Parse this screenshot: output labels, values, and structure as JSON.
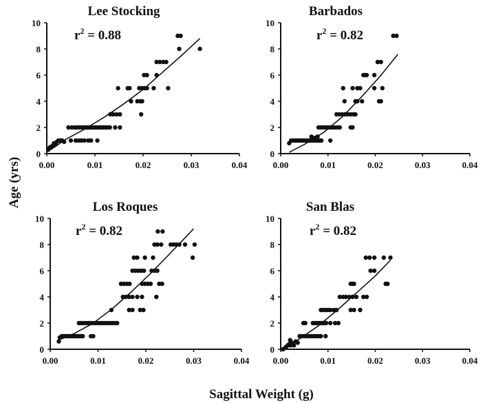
{
  "figure": {
    "xlabel": "Sagittal Weight (g)",
    "ylabel": "Age (yrs)"
  },
  "chart_data": [
    {
      "type": "scatter",
      "title": "Lee Stocking",
      "r2_label": "r",
      "r2_sup": "2",
      "r2_value": " = 0.88",
      "xlim": [
        0,
        0.04
      ],
      "ylim": [
        0,
        10
      ],
      "xticks": [
        "0.00",
        "0.01",
        "0.02",
        "0.03",
        "0.04"
      ],
      "yticks": [
        "0",
        "2",
        "4",
        "6",
        "8",
        "10"
      ],
      "points": [
        [
          0.0003,
          0.3
        ],
        [
          0.0005,
          0.4
        ],
        [
          0.0007,
          0.5
        ],
        [
          0.0009,
          0.5
        ],
        [
          0.0012,
          0.6
        ],
        [
          0.0015,
          0.8
        ],
        [
          0.0018,
          0.7
        ],
        [
          0.0021,
          0.9
        ],
        [
          0.0024,
          1
        ],
        [
          0.0028,
          1
        ],
        [
          0.0032,
          1
        ],
        [
          0.0036,
          0.9
        ],
        [
          0.0045,
          2
        ],
        [
          0.0052,
          2
        ],
        [
          0.0058,
          2
        ],
        [
          0.0063,
          2
        ],
        [
          0.0068,
          2
        ],
        [
          0.0073,
          2
        ],
        [
          0.0078,
          2
        ],
        [
          0.0082,
          2
        ],
        [
          0.0086,
          2
        ],
        [
          0.009,
          2
        ],
        [
          0.0094,
          2
        ],
        [
          0.0098,
          2
        ],
        [
          0.0102,
          2
        ],
        [
          0.0106,
          2
        ],
        [
          0.011,
          2
        ],
        [
          0.0114,
          2
        ],
        [
          0.0118,
          2
        ],
        [
          0.0122,
          2
        ],
        [
          0.0126,
          2
        ],
        [
          0.0131,
          2
        ],
        [
          0.0142,
          2
        ],
        [
          0.0152,
          2
        ],
        [
          0.005,
          1
        ],
        [
          0.006,
          1
        ],
        [
          0.0066,
          1
        ],
        [
          0.0072,
          1
        ],
        [
          0.0078,
          1
        ],
        [
          0.0086,
          1
        ],
        [
          0.0092,
          1
        ],
        [
          0.0105,
          1
        ],
        [
          0.0132,
          3
        ],
        [
          0.0138,
          3
        ],
        [
          0.0145,
          3
        ],
        [
          0.0152,
          3
        ],
        [
          0.0148,
          5
        ],
        [
          0.0168,
          5
        ],
        [
          0.0175,
          4
        ],
        [
          0.0172,
          5
        ],
        [
          0.0188,
          4
        ],
        [
          0.0194,
          4
        ],
        [
          0.0198,
          4
        ],
        [
          0.0196,
          3
        ],
        [
          0.0192,
          5
        ],
        [
          0.0198,
          5
        ],
        [
          0.0203,
          5
        ],
        [
          0.0208,
          5
        ],
        [
          0.0202,
          6
        ],
        [
          0.0208,
          6
        ],
        [
          0.0228,
          6
        ],
        [
          0.0222,
          5
        ],
        [
          0.0228,
          7
        ],
        [
          0.0235,
          7
        ],
        [
          0.0242,
          7
        ],
        [
          0.0248,
          7
        ],
        [
          0.0252,
          5
        ],
        [
          0.0272,
          9
        ],
        [
          0.0278,
          9
        ],
        [
          0.0275,
          8
        ],
        [
          0.0318,
          8
        ]
      ],
      "fit": [
        [
          0.0008,
          0.3
        ],
        [
          0.004,
          1.1
        ],
        [
          0.008,
          1.9
        ],
        [
          0.012,
          2.8
        ],
        [
          0.016,
          3.8
        ],
        [
          0.02,
          4.9
        ],
        [
          0.024,
          6.2
        ],
        [
          0.028,
          7.5
        ],
        [
          0.0318,
          8.8
        ]
      ]
    },
    {
      "type": "scatter",
      "title": "Barbados",
      "r2_label": "r",
      "r2_sup": "2",
      "r2_value": " = 0.82",
      "xlim": [
        0,
        0.04
      ],
      "ylim": [
        0,
        10
      ],
      "xticks": [
        "0.00",
        "0.01",
        "0.02",
        "0.03",
        "0.04"
      ],
      "yticks": [
        "0",
        "2",
        "4",
        "6",
        "8",
        "10"
      ],
      "points": [
        [
          0.0018,
          0.8
        ],
        [
          0.0022,
          1
        ],
        [
          0.0026,
          1
        ],
        [
          0.003,
          1
        ],
        [
          0.0034,
          1
        ],
        [
          0.0038,
          1
        ],
        [
          0.0042,
          1
        ],
        [
          0.0046,
          1
        ],
        [
          0.005,
          1
        ],
        [
          0.0054,
          1
        ],
        [
          0.0058,
          1
        ],
        [
          0.0062,
          1
        ],
        [
          0.0066,
          1
        ],
        [
          0.007,
          1
        ],
        [
          0.0074,
          1
        ],
        [
          0.0078,
          1
        ],
        [
          0.0082,
          1
        ],
        [
          0.0086,
          1
        ],
        [
          0.0105,
          1
        ],
        [
          0.0065,
          1.3
        ],
        [
          0.0072,
          1.2
        ],
        [
          0.0078,
          1.3
        ],
        [
          0.008,
          2
        ],
        [
          0.0085,
          2
        ],
        [
          0.009,
          2
        ],
        [
          0.0095,
          2
        ],
        [
          0.01,
          2
        ],
        [
          0.0105,
          2
        ],
        [
          0.011,
          2
        ],
        [
          0.0115,
          2
        ],
        [
          0.012,
          2
        ],
        [
          0.0125,
          2
        ],
        [
          0.0148,
          2
        ],
        [
          0.0152,
          2
        ],
        [
          0.0118,
          3
        ],
        [
          0.0124,
          3
        ],
        [
          0.013,
          3
        ],
        [
          0.0136,
          3
        ],
        [
          0.0142,
          3
        ],
        [
          0.0148,
          3
        ],
        [
          0.0154,
          3
        ],
        [
          0.0158,
          3
        ],
        [
          0.0135,
          4
        ],
        [
          0.0158,
          4
        ],
        [
          0.0162,
          4
        ],
        [
          0.0172,
          4
        ],
        [
          0.0132,
          5
        ],
        [
          0.0152,
          5
        ],
        [
          0.0162,
          5
        ],
        [
          0.0168,
          5
        ],
        [
          0.0198,
          5
        ],
        [
          0.0215,
          5
        ],
        [
          0.0175,
          6
        ],
        [
          0.0182,
          6
        ],
        [
          0.0198,
          6
        ],
        [
          0.0178,
          6
        ],
        [
          0.0205,
          7
        ],
        [
          0.0212,
          7
        ],
        [
          0.0208,
          4
        ],
        [
          0.0212,
          4
        ],
        [
          0.0238,
          9
        ],
        [
          0.0245,
          9
        ]
      ],
      "fit": [
        [
          0.0018,
          0.1
        ],
        [
          0.005,
          0.7
        ],
        [
          0.009,
          1.6
        ],
        [
          0.013,
          2.8
        ],
        [
          0.017,
          4.3
        ],
        [
          0.021,
          5.9
        ],
        [
          0.0248,
          7.6
        ]
      ]
    },
    {
      "type": "scatter",
      "title": "Los Roques",
      "r2_label": "r",
      "r2_sup": "2",
      "r2_value": " = 0.82",
      "xlim": [
        0,
        0.04
      ],
      "ylim": [
        0,
        10
      ],
      "xticks": [
        "0.00",
        "0.01",
        "0.02",
        "0.03",
        "0.04"
      ],
      "yticks": [
        "0",
        "2",
        "4",
        "6",
        "8",
        "10"
      ],
      "points": [
        [
          0.0018,
          0.6
        ],
        [
          0.002,
          0.9
        ],
        [
          0.0024,
          1
        ],
        [
          0.0028,
          1
        ],
        [
          0.0032,
          1
        ],
        [
          0.0036,
          1
        ],
        [
          0.004,
          1
        ],
        [
          0.0044,
          1
        ],
        [
          0.0048,
          1
        ],
        [
          0.0052,
          1
        ],
        [
          0.0056,
          1
        ],
        [
          0.006,
          1
        ],
        [
          0.0064,
          1
        ],
        [
          0.0068,
          1
        ],
        [
          0.0085,
          1
        ],
        [
          0.009,
          1
        ],
        [
          0.006,
          2
        ],
        [
          0.0065,
          2
        ],
        [
          0.007,
          2
        ],
        [
          0.0075,
          2
        ],
        [
          0.008,
          2
        ],
        [
          0.0085,
          2
        ],
        [
          0.009,
          2
        ],
        [
          0.0095,
          2
        ],
        [
          0.01,
          2
        ],
        [
          0.0105,
          2
        ],
        [
          0.011,
          2
        ],
        [
          0.0115,
          2
        ],
        [
          0.012,
          2
        ],
        [
          0.0125,
          2
        ],
        [
          0.013,
          2
        ],
        [
          0.0135,
          2
        ],
        [
          0.014,
          2
        ],
        [
          0.0128,
          3
        ],
        [
          0.0165,
          3
        ],
        [
          0.0172,
          3
        ],
        [
          0.0188,
          3
        ],
        [
          0.0195,
          3
        ],
        [
          0.0152,
          4
        ],
        [
          0.0158,
          4
        ],
        [
          0.0165,
          4
        ],
        [
          0.0172,
          4
        ],
        [
          0.0182,
          4
        ],
        [
          0.0192,
          4
        ],
        [
          0.0222,
          4
        ],
        [
          0.0148,
          5
        ],
        [
          0.0154,
          5
        ],
        [
          0.016,
          5
        ],
        [
          0.0166,
          5
        ],
        [
          0.0192,
          5
        ],
        [
          0.0198,
          5
        ],
        [
          0.0204,
          5
        ],
        [
          0.021,
          5
        ],
        [
          0.0228,
          5
        ],
        [
          0.0234,
          5
        ],
        [
          0.0172,
          6
        ],
        [
          0.0178,
          6
        ],
        [
          0.0184,
          6
        ],
        [
          0.019,
          6
        ],
        [
          0.0196,
          6
        ],
        [
          0.0212,
          6
        ],
        [
          0.0218,
          6
        ],
        [
          0.0224,
          6
        ],
        [
          0.0175,
          7
        ],
        [
          0.0182,
          7
        ],
        [
          0.0198,
          7
        ],
        [
          0.0215,
          7
        ],
        [
          0.0298,
          7
        ],
        [
          0.0218,
          8
        ],
        [
          0.0224,
          8
        ],
        [
          0.0232,
          8
        ],
        [
          0.0252,
          8
        ],
        [
          0.0258,
          8
        ],
        [
          0.0264,
          8
        ],
        [
          0.027,
          8
        ],
        [
          0.0282,
          8
        ],
        [
          0.0302,
          8
        ],
        [
          0.0225,
          9
        ],
        [
          0.0235,
          9
        ]
      ],
      "fit": [
        [
          0.0018,
          0.7
        ],
        [
          0.005,
          1.2
        ],
        [
          0.009,
          2
        ],
        [
          0.013,
          3.1
        ],
        [
          0.017,
          4.4
        ],
        [
          0.021,
          5.8
        ],
        [
          0.025,
          7.3
        ],
        [
          0.03,
          9.2
        ]
      ]
    },
    {
      "type": "scatter",
      "title": "San Blas",
      "r2_label": "r",
      "r2_sup": "2",
      "r2_value": " = 0.82",
      "xlim": [
        0,
        0.04
      ],
      "ylim": [
        0,
        10
      ],
      "xticks": [
        "0.00",
        "0.01",
        "0.02",
        "0.03",
        "0.04"
      ],
      "yticks": [
        "0",
        "2",
        "4",
        "6",
        "8",
        "10"
      ],
      "points": [
        [
          0.0005,
          0
        ],
        [
          0.0009,
          0.1
        ],
        [
          0.0012,
          0.2
        ],
        [
          0.0015,
          0.3
        ],
        [
          0.0018,
          0.4
        ],
        [
          0.0021,
          0.3
        ],
        [
          0.0024,
          0.5
        ],
        [
          0.002,
          0.7
        ],
        [
          0.0028,
          0.3
        ],
        [
          0.0032,
          0.6
        ],
        [
          0.0036,
          0.5
        ],
        [
          0.004,
          1
        ],
        [
          0.0045,
          1
        ],
        [
          0.005,
          1
        ],
        [
          0.0055,
          1
        ],
        [
          0.006,
          1
        ],
        [
          0.0065,
          1
        ],
        [
          0.007,
          1
        ],
        [
          0.0075,
          1
        ],
        [
          0.008,
          1
        ],
        [
          0.0085,
          1
        ],
        [
          0.0095,
          1
        ],
        [
          0.0048,
          2
        ],
        [
          0.0052,
          2
        ],
        [
          0.0068,
          2
        ],
        [
          0.0072,
          2
        ],
        [
          0.0076,
          2
        ],
        [
          0.008,
          2
        ],
        [
          0.0084,
          2
        ],
        [
          0.0088,
          2
        ],
        [
          0.0092,
          2
        ],
        [
          0.0096,
          2
        ],
        [
          0.0105,
          2
        ],
        [
          0.0115,
          2
        ],
        [
          0.0122,
          2
        ],
        [
          0.0085,
          3
        ],
        [
          0.009,
          3
        ],
        [
          0.0095,
          3
        ],
        [
          0.01,
          3
        ],
        [
          0.0105,
          3
        ],
        [
          0.0112,
          3
        ],
        [
          0.0118,
          3
        ],
        [
          0.0148,
          3
        ],
        [
          0.0155,
          3
        ],
        [
          0.0168,
          3
        ],
        [
          0.0125,
          4
        ],
        [
          0.0132,
          4
        ],
        [
          0.0138,
          4
        ],
        [
          0.0145,
          4
        ],
        [
          0.0152,
          4
        ],
        [
          0.016,
          4
        ],
        [
          0.0175,
          4
        ],
        [
          0.0182,
          4
        ],
        [
          0.0148,
          5
        ],
        [
          0.0152,
          5
        ],
        [
          0.0155,
          5
        ],
        [
          0.0222,
          5
        ],
        [
          0.0226,
          5
        ],
        [
          0.019,
          6
        ],
        [
          0.0198,
          6
        ],
        [
          0.018,
          7
        ],
        [
          0.0188,
          7
        ],
        [
          0.0198,
          7
        ],
        [
          0.0218,
          7
        ],
        [
          0.0232,
          7
        ]
      ],
      "fit": [
        [
          0.0005,
          0
        ],
        [
          0.004,
          0.8
        ],
        [
          0.008,
          1.8
        ],
        [
          0.012,
          3
        ],
        [
          0.016,
          4.3
        ],
        [
          0.02,
          5.6
        ],
        [
          0.0232,
          6.8
        ]
      ]
    }
  ]
}
